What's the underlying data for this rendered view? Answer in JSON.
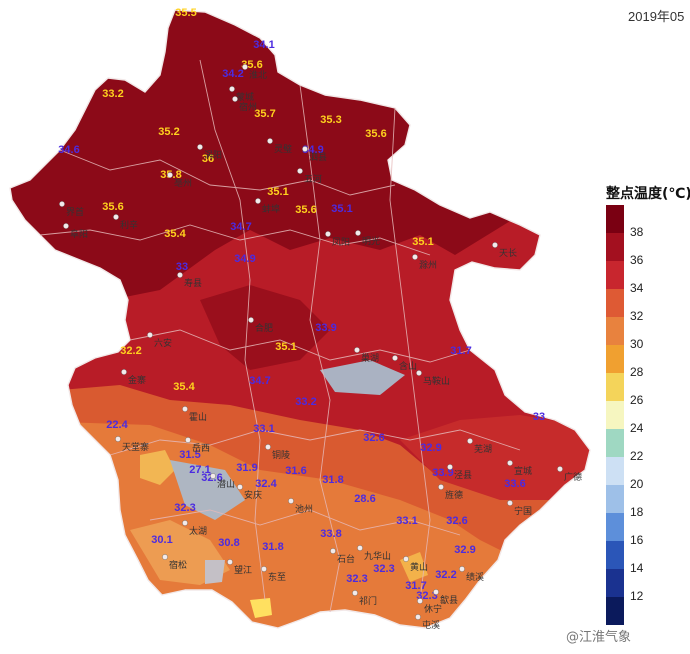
{
  "date_text": "2019年05",
  "legend": {
    "title": "整点温度(℃)",
    "bands": [
      {
        "color": "#7a0012"
      },
      {
        "color": "#a3101f"
      },
      {
        "color": "#c8262e"
      },
      {
        "color": "#de5a34"
      },
      {
        "color": "#e8823e"
      },
      {
        "color": "#f0a030"
      },
      {
        "color": "#f4d45a"
      },
      {
        "color": "#f6f6c0"
      },
      {
        "color": "#9fd8c2"
      },
      {
        "color": "#cde0f4"
      },
      {
        "color": "#9ec0e8"
      },
      {
        "color": "#5d8fda"
      },
      {
        "color": "#2b56b8"
      },
      {
        "color": "#1a3290"
      },
      {
        "color": "#0b1a5c"
      }
    ],
    "ticks": [
      "38",
      "36",
      "34",
      "32",
      "30",
      "28",
      "26",
      "24",
      "22",
      "20",
      "18",
      "16",
      "14",
      "12"
    ]
  },
  "watermark": "@江淮气象",
  "temperature_readings": [
    "35.5",
    "34.1",
    "35.6",
    "34.2",
    "33.2",
    "35.7",
    "35.3",
    "35.2",
    "35.6",
    "34.6",
    "36",
    "35.8",
    "34.9",
    "35.6",
    "35.1",
    "35.6",
    "35.4",
    "35.1",
    "34.7",
    "35.1",
    "33",
    "34.9",
    "33.9",
    "35.1",
    "31.7",
    "32.2",
    "35.4",
    "34.7",
    "33.2",
    "22.4",
    "33.1",
    "32.6",
    "33",
    "31.5",
    "27.1",
    "32.6",
    "31.9",
    "32.4",
    "31.6",
    "31.8",
    "32.9",
    "33.9",
    "33.6",
    "32.3",
    "30.1",
    "30.8",
    "31.8",
    "33.8",
    "28.6",
    "33.1",
    "32.6",
    "32.9",
    "32.3",
    "32.3",
    "31.7",
    "32.2",
    "32.3"
  ],
  "place_names": [
    "亳州",
    "涡阳",
    "蒙城",
    "淮北",
    "宿州",
    "灵璧",
    "泗县",
    "界首",
    "阜阳",
    "利辛",
    "蚌埠",
    "五河",
    "凤阳",
    "明光",
    "天长",
    "滁州",
    "寿县",
    "六安",
    "合肥",
    "巢湖",
    "含山",
    "马鞍山",
    "芜湖",
    "宣城",
    "广德",
    "金寨",
    "霍山",
    "岳西",
    "潜山",
    "太湖",
    "宿松",
    "望江",
    "安庆",
    "池州",
    "铜陵",
    "九华山",
    "黄山",
    "祁门",
    "屯溪",
    "歙县",
    "绩溪",
    "宁国",
    "旌德",
    "泾县",
    "休宁",
    "石台",
    "东至",
    "天堂寨"
  ],
  "colors": {
    "water": "#9aa6b8",
    "border": "#f2e8e8",
    "temp_yellow": "#ffd21e",
    "temp_purple": "#4c2be0"
  }
}
